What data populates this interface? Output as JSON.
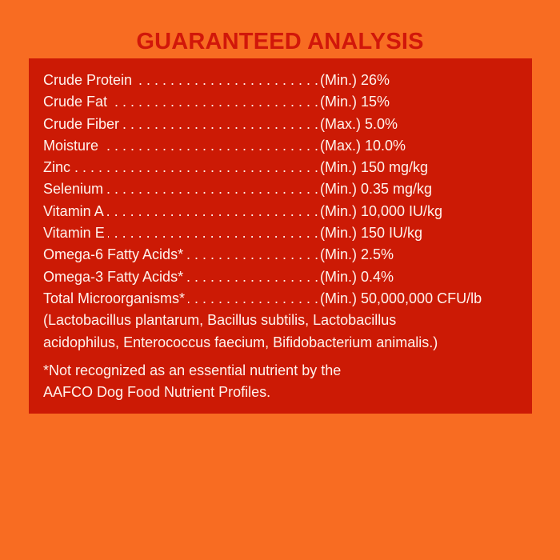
{
  "title": "GUARANTEED ANALYSIS",
  "colors": {
    "background": "#F86C22",
    "panel": "#CC1A05",
    "title": "#D1170A",
    "text": "#FFF3EC"
  },
  "rows": [
    {
      "label": "Crude Protein",
      "value": "(Min.) 26%"
    },
    {
      "label": "Crude Fat",
      "value": "(Min.) 15%"
    },
    {
      "label": "Crude Fiber",
      "value": "(Max.) 5.0%"
    },
    {
      "label": "Moisture",
      "value": "(Max.) 10.0%"
    },
    {
      "label": "Zinc",
      "value": "(Min.) 150 mg/kg"
    },
    {
      "label": "Selenium",
      "value": "(Min.) 0.35 mg/kg"
    },
    {
      "label": "Vitamin A",
      "value": "(Min.) 10,000 IU/kg"
    },
    {
      "label": "Vitamin E",
      "value": "(Min.) 150 IU/kg"
    },
    {
      "label": "Omega-6 Fatty Acids*",
      "value": "(Min.) 2.5%"
    },
    {
      "label": "Omega-3 Fatty Acids*",
      "value": "(Min.) 0.4%"
    },
    {
      "label": "Total Microorganisms*",
      "value": "(Min.) 50,000,000 CFU/lb"
    }
  ],
  "microorganisms_note": [
    "(Lactobacillus plantarum, Bacillus subtilis, Lactobacillus",
    "acidophilus, Enterococcus faecium, Bifidobacterium animalis.)"
  ],
  "footnote": [
    "*Not recognized as an essential nutrient by the",
    "AAFCO Dog Food Nutrient Profiles."
  ]
}
